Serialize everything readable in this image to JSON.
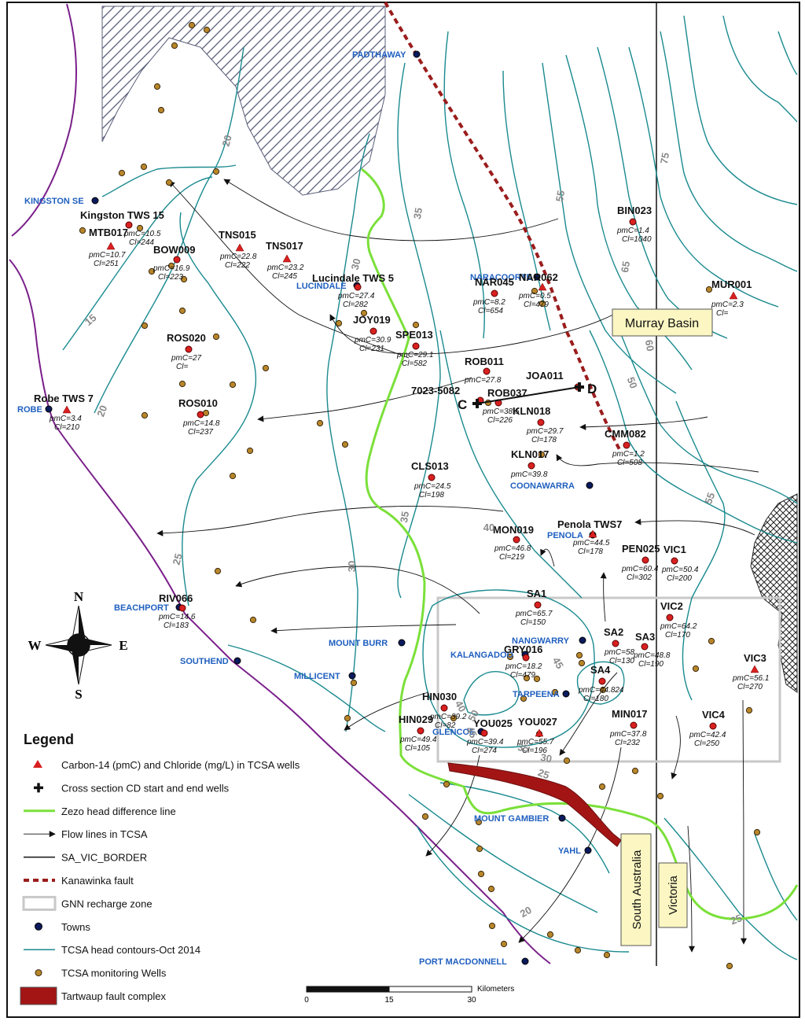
{
  "legend": {
    "title": "Legend",
    "items": [
      {
        "label": "Carbon-14 (pmC) and Chloride (mg/L) in TCSA wells",
        "icon": "red-triangle-icon"
      },
      {
        "label": "Cross section CD start and end wells",
        "icon": "black-cross-icon"
      },
      {
        "label": "Zezo head difference line",
        "icon": "green-line-icon"
      },
      {
        "label": "Flow lines in TCSA",
        "icon": "arrow-line-icon"
      },
      {
        "label": "SA_VIC_BORDER",
        "icon": "black-line-icon"
      },
      {
        "label": "Kanawinka fault",
        "icon": "dashed-red-line-icon"
      },
      {
        "label": "GNN recharge zone",
        "icon": "grey-box-icon"
      },
      {
        "label": "Towns",
        "icon": "blue-dot-icon"
      },
      {
        "label": "TCSA head contours-Oct 2014",
        "icon": "teal-line-icon"
      },
      {
        "label": "TCSA monitoring Wells",
        "icon": "brown-dot-icon"
      },
      {
        "label": "Tartwaup fault complex",
        "icon": "red-fill-icon"
      }
    ]
  },
  "colors": {
    "contour": "#1a8a8f",
    "zero_head": "#7be03a",
    "fault": "#9b1c1c",
    "coast": "#7a1f8a",
    "town": "#1f5fbf",
    "well": "#b8862a",
    "sample": "#d92020",
    "recharge": "#c8c8c8"
  },
  "boxes": {
    "murray_basin": "Murray Basin",
    "south_australia": "South Australia",
    "victoria": "Victoria"
  },
  "compass": {
    "n": "N",
    "s": "S",
    "e": "E",
    "w": "W"
  },
  "scalebar": {
    "unit": "Kilometers",
    "ticks": [
      "0",
      "15",
      "30"
    ]
  },
  "cross_section": {
    "c": "C",
    "d": "D"
  },
  "towns": [
    "PADTHAWAY",
    "KINGSTON SE",
    "LUCINDALE",
    "NARACOORTE",
    "ROBE",
    "COONAWARRA",
    "PENOLA",
    "BEACHPORT",
    "MOUNT BURR",
    "SOUTHEND",
    "MILLICENT",
    "NANGWARRY",
    "KALANGADOO",
    "TARPEENA",
    "GLENCOE",
    "MOUNT GAMBIER",
    "YAHL",
    "PORT MACDONNELL"
  ],
  "contour_labels": [
    "15",
    "20",
    "20",
    "25",
    "30",
    "35",
    "35",
    "40",
    "45",
    "50",
    "55",
    "60",
    "65",
    "75",
    "45",
    "50",
    "55",
    "25",
    "30",
    "20",
    "25",
    "40",
    "35",
    "30"
  ],
  "wells": [
    {
      "id": "Kingston TWS 15",
      "pmc": "pmC=10.5",
      "cl": "Cl=244"
    },
    {
      "id": "MTB017",
      "pmc": "pmC=10.7",
      "cl": "Cl=251"
    },
    {
      "id": "BOW009",
      "pmc": "pmC=16.9",
      "cl": "Cl=223"
    },
    {
      "id": "TNS015",
      "pmc": "pmC=22.8",
      "cl": "Cl=222"
    },
    {
      "id": "TNS017",
      "pmc": "pmC=23.2",
      "cl": "Cl=245"
    },
    {
      "id": "Lucindale TWS 5",
      "pmc": "pmC=27.4",
      "cl": "Cl=282"
    },
    {
      "id": "JOY019",
      "pmc": "pmC=30.9",
      "cl": "Cl=231"
    },
    {
      "id": "SPE013",
      "pmc": "pmC=29.1",
      "cl": "Cl=582"
    },
    {
      "id": "ROS020",
      "pmc": "pmC=27",
      "cl": "Cl="
    },
    {
      "id": "ROS010",
      "pmc": "pmC=14.8",
      "cl": "Cl=237"
    },
    {
      "id": "Robe TWS 7",
      "pmc": "pmC=3.4",
      "cl": "Cl=210"
    },
    {
      "id": "NAR045",
      "pmc": "pmC=8.2",
      "cl": "Cl=654"
    },
    {
      "id": "NAR062",
      "pmc": "pmC=0.5",
      "cl": "Cl=479"
    },
    {
      "id": "BIN023",
      "pmc": "pmC=1.4",
      "cl": "Cl=1040"
    },
    {
      "id": "MUR001",
      "pmc": "pmC=2.3",
      "cl": "Cl="
    },
    {
      "id": "ROB011",
      "pmc": "pmC=27.8",
      "cl": ""
    },
    {
      "id": "JOA011",
      "pmc": "",
      "cl": ""
    },
    {
      "id": "7023-5082",
      "pmc": "",
      "cl": ""
    },
    {
      "id": "ROB037",
      "pmc": "pmC=38.5",
      "cl": "Cl=226"
    },
    {
      "id": "KLN018",
      "pmc": "pmC=29.7",
      "cl": "Cl=178"
    },
    {
      "id": "CMM082",
      "pmc": "pmC=1.2",
      "cl": "Cl=508"
    },
    {
      "id": "KLN017",
      "pmc": "pmC=39.8",
      "cl": ""
    },
    {
      "id": "CLS013",
      "pmc": "pmC=24.5",
      "cl": "Cl=198"
    },
    {
      "id": "MON019",
      "pmc": "pmC=46.8",
      "cl": "Cl=219"
    },
    {
      "id": "Penola TWS7",
      "pmc": "pmC=44.5",
      "cl": "Cl=178"
    },
    {
      "id": "PEN025",
      "pmc": "pmC=60.4",
      "cl": "Cl=302"
    },
    {
      "id": "VIC1",
      "pmc": "pmC=50.4",
      "cl": "Cl=200"
    },
    {
      "id": "RIV066",
      "pmc": "pmC=14.6",
      "cl": "Cl=183"
    },
    {
      "id": "SA1",
      "pmc": "pmC=65.7",
      "cl": "Cl=150"
    },
    {
      "id": "VIC2",
      "pmc": "pmC=64.2",
      "cl": "Cl=170"
    },
    {
      "id": "SA2",
      "pmc": "pmC=58",
      "cl": "Cl=130"
    },
    {
      "id": "SA3",
      "pmc": "pmC=48.8",
      "cl": "Cl=190"
    },
    {
      "id": "GRY016",
      "pmc": "pmC=18.2",
      "cl": "Cl=479"
    },
    {
      "id": "SA4",
      "pmc": "pmC=44.824",
      "cl": "Cl=180"
    },
    {
      "id": "VIC3",
      "pmc": "pmC=56.1",
      "cl": "Cl=270"
    },
    {
      "id": "HIN030",
      "pmc": "pmC=39.2",
      "cl": "Cl=82"
    },
    {
      "id": "HIN029",
      "pmc": "pmC=49.4",
      "cl": "Cl=105"
    },
    {
      "id": "YOU025",
      "pmc": "pmC=39.4",
      "cl": "Cl=274"
    },
    {
      "id": "YOU027",
      "pmc": "pmC=55.7",
      "cl": "Cl=196"
    },
    {
      "id": "MIN017",
      "pmc": "pmC=37.8",
      "cl": "Cl=232"
    },
    {
      "id": "VIC4",
      "pmc": "pmC=42.4",
      "cl": "Cl=250"
    }
  ]
}
